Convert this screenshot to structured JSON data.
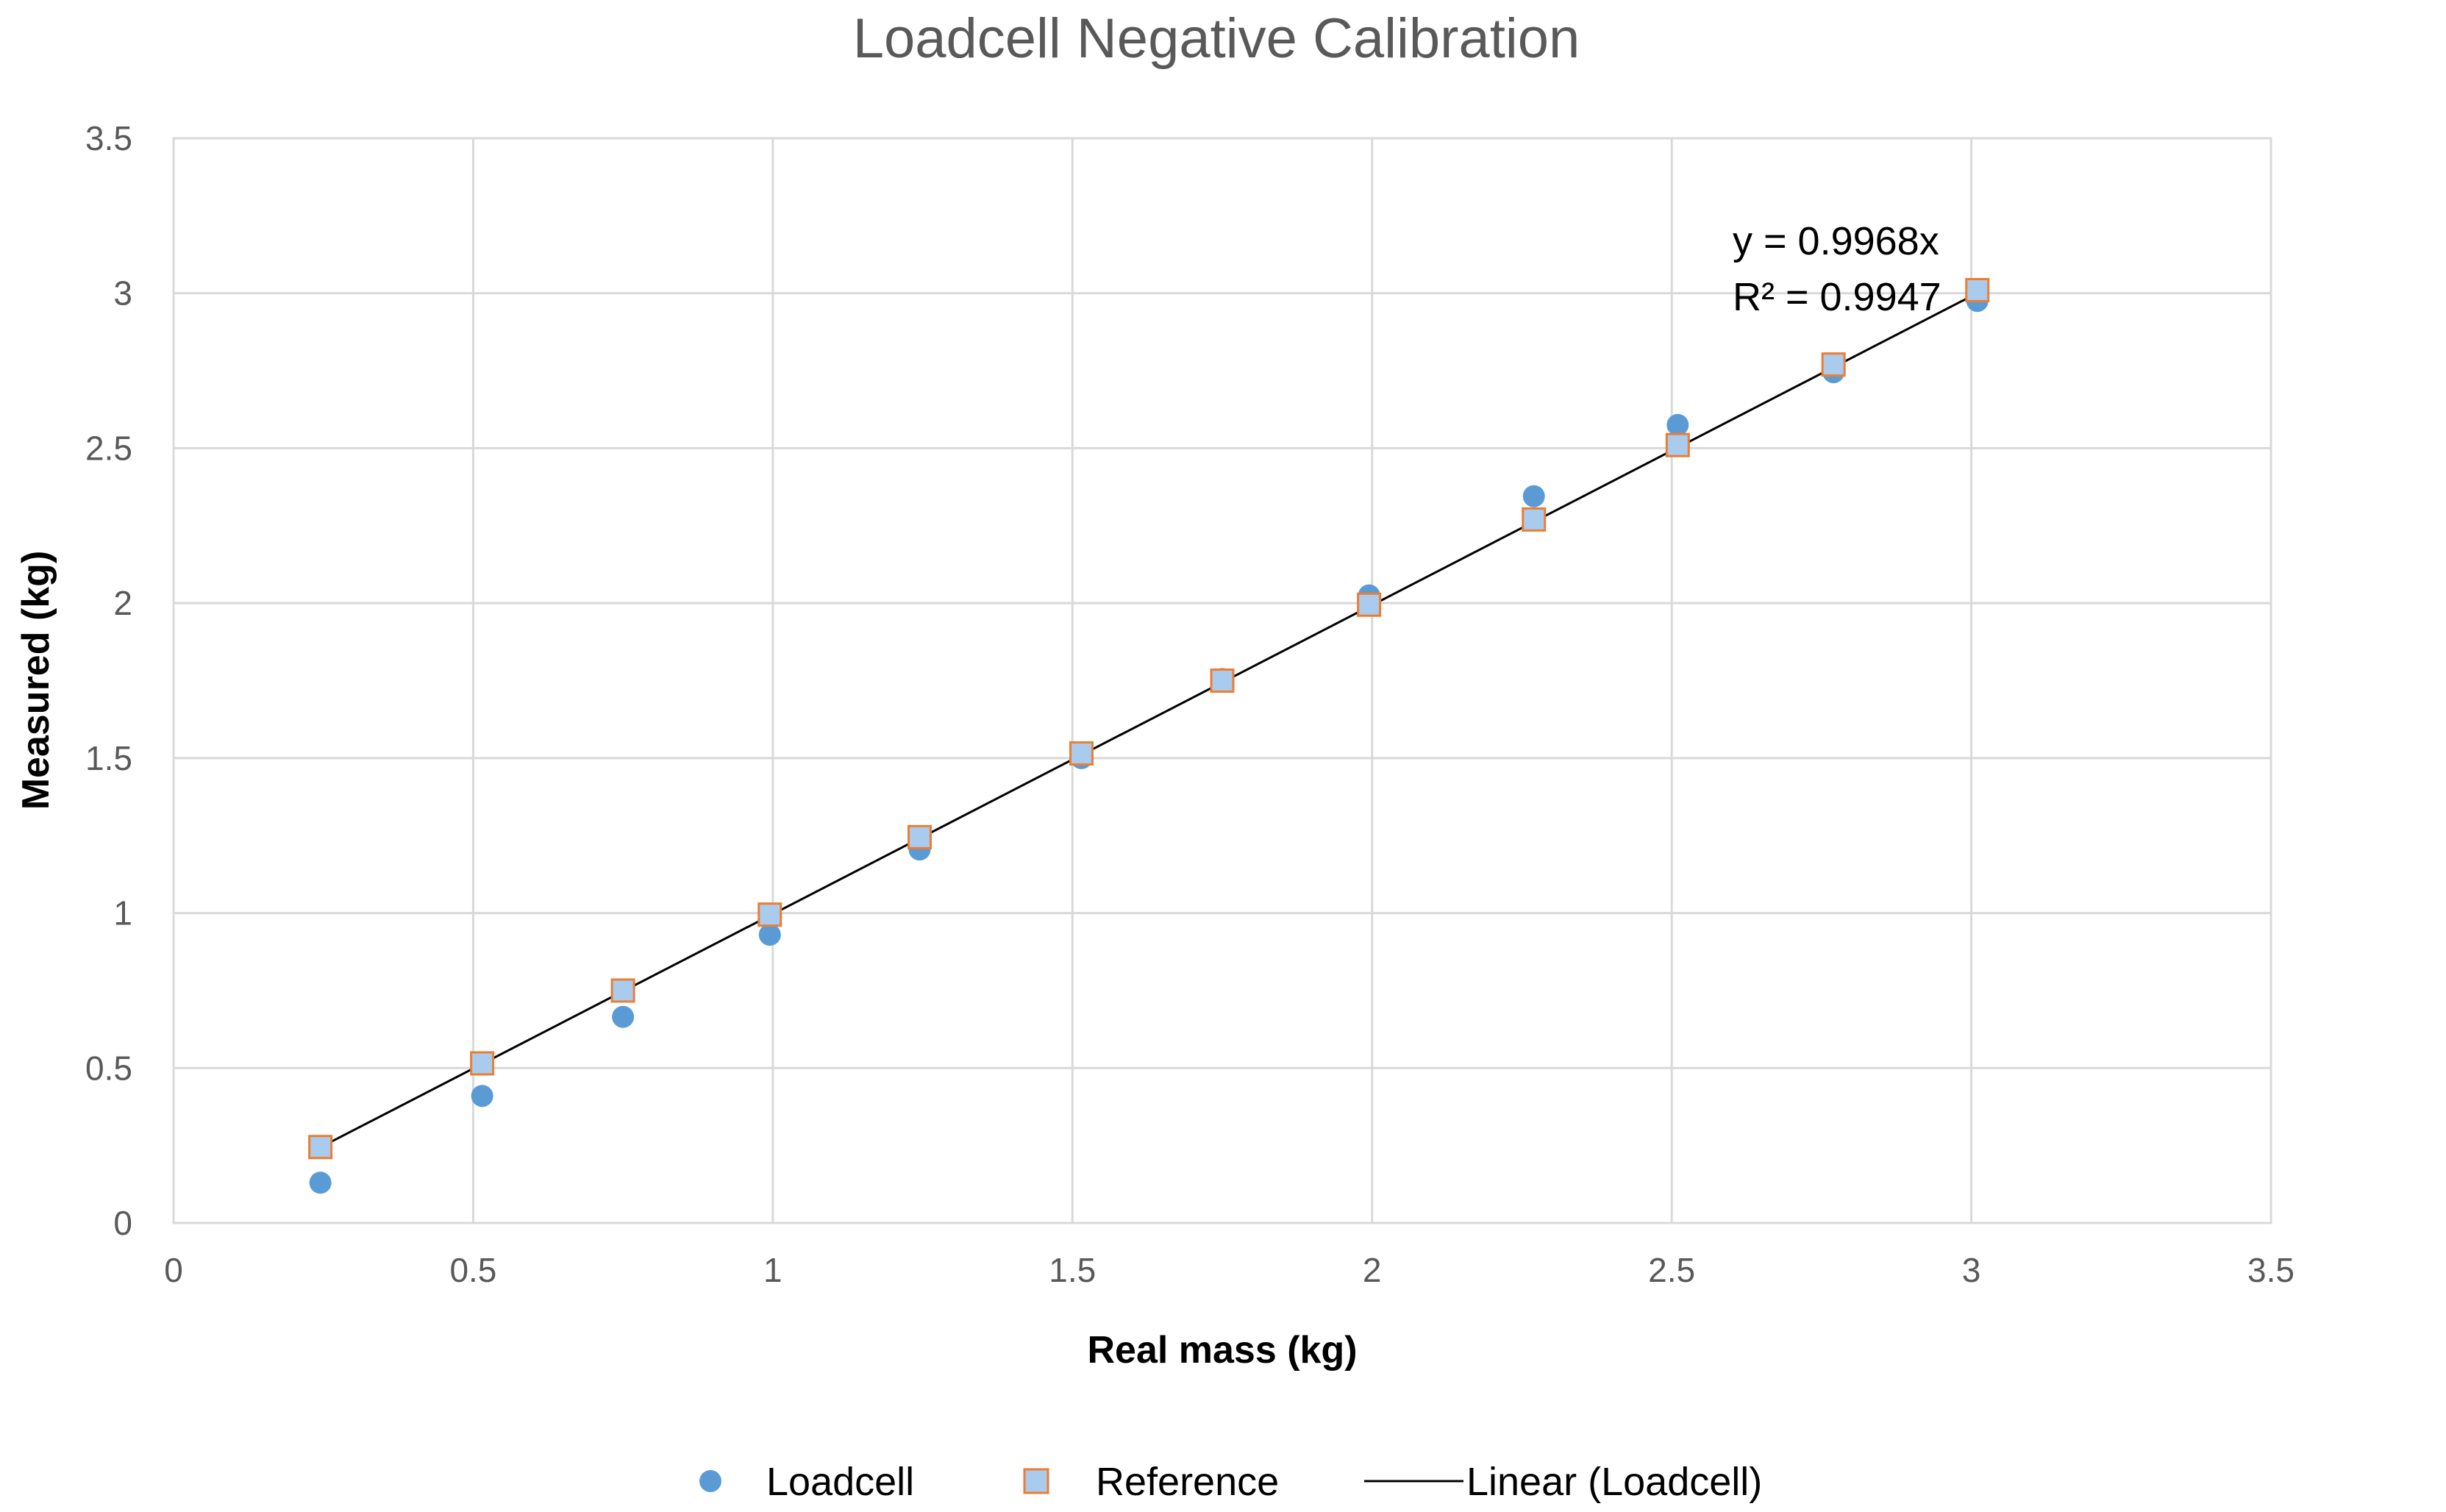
{
  "chart_data": {
    "type": "scatter",
    "title": "Loadcell Negative Calibration",
    "xlabel": "Real mass (kg)",
    "ylabel": "Measured (kg)",
    "xlim": [
      0,
      3.5
    ],
    "ylim": [
      0,
      3.5
    ],
    "xticks": [
      "0",
      "0.5",
      "1",
      "1.5",
      "2",
      "2.5",
      "3",
      "3.5"
    ],
    "yticks": [
      "0",
      "0.5",
      "1",
      "1.5",
      "2",
      "2.5",
      "3",
      "3.5"
    ],
    "grid": true,
    "legend_position": "bottom",
    "series": [
      {
        "name": "Loadcell",
        "marker": "circle",
        "color": "#5B9BD5",
        "points": [
          [
            0.245,
            0.13
          ],
          [
            0.515,
            0.41
          ],
          [
            0.75,
            0.665
          ],
          [
            0.995,
            0.93
          ],
          [
            1.245,
            1.205
          ],
          [
            1.515,
            1.5
          ],
          [
            1.75,
            1.755
          ],
          [
            1.995,
            2.025
          ],
          [
            2.27,
            2.345
          ],
          [
            2.51,
            2.575
          ],
          [
            2.77,
            2.745
          ],
          [
            3.01,
            2.975
          ]
        ]
      },
      {
        "name": "Reference",
        "marker": "square",
        "color": "#A9CBEE",
        "edge_color": "#ED7D31",
        "points": [
          [
            0.245,
            0.245
          ],
          [
            0.515,
            0.515
          ],
          [
            0.75,
            0.75
          ],
          [
            0.995,
            0.995
          ],
          [
            1.245,
            1.245
          ],
          [
            1.515,
            1.515
          ],
          [
            1.75,
            1.75
          ],
          [
            1.995,
            1.995
          ],
          [
            2.27,
            2.27
          ],
          [
            2.51,
            2.51
          ],
          [
            2.77,
            2.77
          ],
          [
            3.01,
            3.01
          ]
        ]
      }
    ],
    "trendline": {
      "name": "Linear (Loadcell)",
      "slope": 0.9968,
      "x_range": [
        0.245,
        3.01
      ],
      "color": "#000000",
      "equation": "y = 0.9968x",
      "r_squared": "R² = 0.9947"
    },
    "legend": [
      "Loadcell",
      "Reference",
      "Linear (Loadcell)"
    ]
  }
}
